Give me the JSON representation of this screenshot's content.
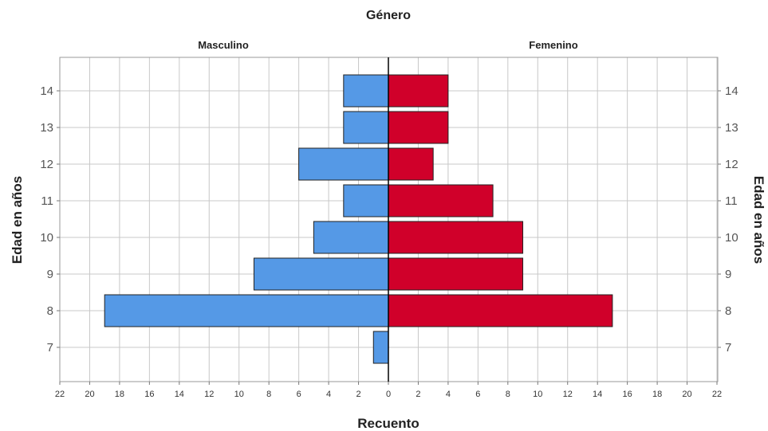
{
  "chart_data": {
    "type": "bar",
    "subtype": "population-pyramid",
    "title": "Género",
    "xlabel": "Recuento",
    "ylabel": "Edad en años",
    "ylabel_right": "Edad en años",
    "categories": [
      "7",
      "8",
      "9",
      "10",
      "11",
      "12",
      "13",
      "14"
    ],
    "series": [
      {
        "name": "Masculino",
        "side": "left",
        "color": "#5599e6",
        "values": [
          1,
          19,
          9,
          5,
          3,
          6,
          3,
          3
        ]
      },
      {
        "name": "Femenino",
        "side": "right",
        "color": "#d0002a",
        "values": [
          0,
          15,
          9,
          9,
          7,
          3,
          4,
          4
        ]
      }
    ],
    "xlim": [
      0,
      22
    ],
    "x_ticks": [
      22,
      20,
      18,
      16,
      14,
      12,
      10,
      8,
      6,
      4,
      2,
      0,
      2,
      4,
      6,
      8,
      10,
      12,
      14,
      16,
      18,
      20,
      22
    ],
    "grid": true,
    "legend": "none"
  }
}
